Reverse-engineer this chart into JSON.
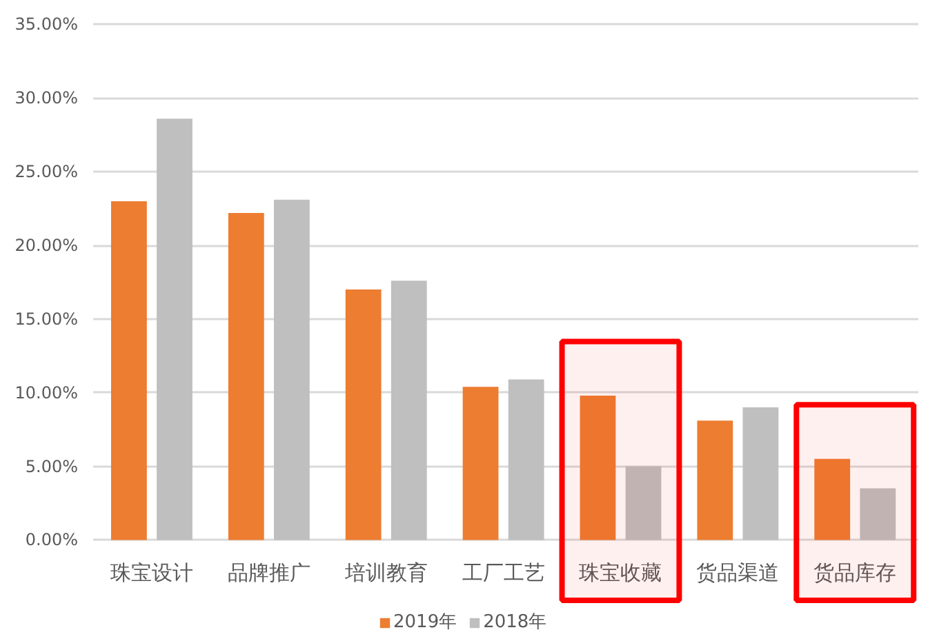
{
  "chart_data": {
    "type": "bar",
    "categories": [
      "珠宝设计",
      "品牌推广",
      "培训教育",
      "工厂工艺",
      "珠宝收藏",
      "货品渠道",
      "货品库存"
    ],
    "series": [
      {
        "name": "2019年",
        "color": "#ed7d31",
        "values": [
          23.0,
          22.2,
          17.0,
          10.4,
          9.8,
          8.1,
          5.5
        ]
      },
      {
        "name": "2018年",
        "color": "#bfbfbf",
        "values": [
          28.6,
          23.1,
          17.6,
          10.9,
          5.0,
          9.0,
          3.5
        ]
      }
    ],
    "ylim": [
      0,
      35
    ],
    "yticks": [
      {
        "value": 0,
        "label": "0.00%"
      },
      {
        "value": 5,
        "label": "5.00%"
      },
      {
        "value": 10,
        "label": "10.00%"
      },
      {
        "value": 15,
        "label": "15.00%"
      },
      {
        "value": 20,
        "label": "20.00%"
      },
      {
        "value": 25,
        "label": "25.00%"
      },
      {
        "value": 30,
        "label": "30.00%"
      },
      {
        "value": 35,
        "label": "35.00%"
      }
    ],
    "grid": "y",
    "legend": "bottom",
    "bands": [
      {
        "axis": "x",
        "from": "珠宝收藏",
        "to": "珠宝收藏",
        "color": "#ff0000"
      },
      {
        "axis": "x",
        "from": "货品库存",
        "to": "货品库存",
        "color": "#ff0000"
      }
    ]
  }
}
